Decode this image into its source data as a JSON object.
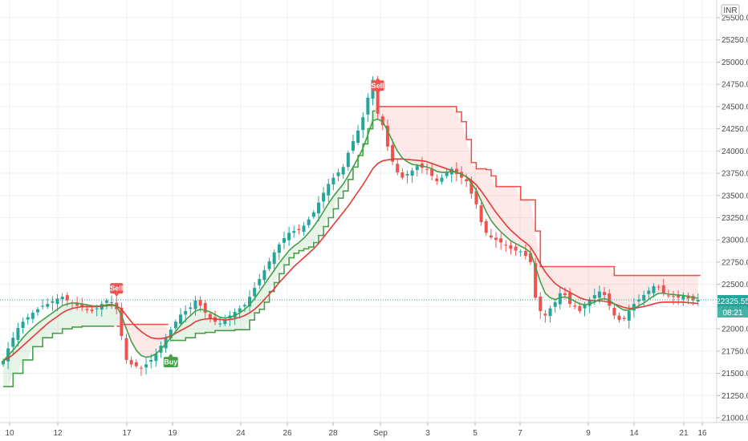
{
  "currency_label": "INR",
  "price_tag": "22325.55",
  "countdown_tag": "08:21",
  "colors": {
    "up": "#26a69a",
    "down": "#ef5350",
    "ema_fast": "#43a047",
    "ema_slow": "#e53935",
    "stop_red": "#ef5350",
    "stop_green": "#43a047",
    "fill_red": "rgba(239,83,80,0.13)",
    "fill_green": "rgba(67,160,71,0.13)",
    "grid": "#eef1f6",
    "price_line": "#26a69a"
  },
  "signals": [
    {
      "type": "sell",
      "label": "Sell",
      "date_index": 23
    },
    {
      "type": "buy",
      "label": "Buy",
      "date_index": 34
    },
    {
      "type": "sell",
      "label": "Sell",
      "date_index": 76
    }
  ],
  "chart_data": {
    "type": "candlestick",
    "ylim": [
      21000,
      25500
    ],
    "y_ticks": [
      "21000.00",
      "21250.00",
      "21500.00",
      "21750.00",
      "22000.00",
      "22250.00",
      "22500.00",
      "22750.00",
      "23000.00",
      "23250.00",
      "23500.00",
      "23750.00",
      "24000.00",
      "24250.00",
      "24500.00",
      "24750.00",
      "25000.00",
      "25250.00",
      "25500.00"
    ],
    "x_ticks": [
      "10",
      "12",
      "17",
      "19",
      "24",
      "26",
      "28",
      "Sep",
      "3",
      "5",
      "7",
      "9",
      "14",
      "16",
      "21"
    ],
    "close": [
      21640,
      21780,
      21900,
      22010,
      22080,
      22130,
      22180,
      22220,
      22260,
      22280,
      22310,
      22340,
      22360,
      22320,
      22290,
      22260,
      22240,
      22210,
      22200,
      22230,
      22280,
      22320,
      22300,
      22220,
      21920,
      21650,
      21600,
      21580,
      21560,
      21600,
      21650,
      21720,
      21810,
      21900,
      21990,
      22080,
      22160,
      22200,
      22240,
      22320,
      22260,
      22180,
      22120,
      22080,
      22060,
      22100,
      22150,
      22190,
      22230,
      22270,
      22360,
      22460,
      22560,
      22660,
      22760,
      22860,
      22950,
      23020,
      23080,
      23100,
      23110,
      23160,
      23230,
      23310,
      23420,
      23530,
      23630,
      23700,
      23760,
      23820,
      23980,
      24110,
      24230,
      24380,
      24600,
      24800,
      24420,
      24290,
      24050,
      23880,
      23760,
      23700,
      23740,
      23780,
      23830,
      23810,
      23790,
      23720,
      23660,
      23700,
      23760,
      23800,
      23740,
      23700,
      23660,
      23520,
      23400,
      23200,
      23080,
      23030,
      23000,
      22970,
      22940,
      22900,
      22880,
      22870,
      22820,
      22750,
      22350,
      22200,
      22150,
      22230,
      22300,
      22400,
      22380,
      22280,
      22250,
      22200,
      22270,
      22330,
      22380,
      22420,
      22380,
      22260,
      22150,
      22100,
      22110,
      22200,
      22280,
      22330,
      22380,
      22430,
      22480,
      22470,
      22400,
      22370,
      22360,
      22350,
      22370,
      22340,
      22320,
      22325.55
    ],
    "ema_fast": [
      21640,
      21700,
      21760,
      21830,
      21900,
      21960,
      22010,
      22060,
      22100,
      22140,
      22180,
      22220,
      22260,
      22280,
      22290,
      22290,
      22280,
      22270,
      22260,
      22255,
      22260,
      22270,
      22275,
      22260,
      22150,
      22000,
      21860,
      21760,
      21700,
      21680,
      21690,
      21720,
      21770,
      21830,
      21900,
      21970,
      22040,
      22100,
      22150,
      22200,
      22220,
      22210,
      22190,
      22160,
      22130,
      22120,
      22130,
      22150,
      22180,
      22220,
      22270,
      22340,
      22420,
      22500,
      22580,
      22660,
      22740,
      22810,
      22880,
      22930,
      22970,
      23020,
      23080,
      23150,
      23230,
      23320,
      23410,
      23490,
      23560,
      23630,
      23720,
      23820,
      23920,
      24030,
      24180,
      24340,
      24360,
      24330,
      24230,
      24110,
      24000,
      23920,
      23880,
      23850,
      23840,
      23830,
      23820,
      23800,
      23770,
      23760,
      23760,
      23770,
      23760,
      23740,
      23710,
      23640,
      23560,
      23440,
      23320,
      23220,
      23150,
      23090,
      23040,
      22990,
      22960,
      22930,
      22900,
      22860,
      22700,
      22530,
      22400,
      22350,
      22330,
      22350,
      22360,
      22340,
      22310,
      22280,
      22270,
      22280,
      22300,
      22330,
      22340,
      22320,
      22280,
      22240,
      22210,
      22210,
      22230,
      22260,
      22290,
      22330,
      22370,
      22400,
      22400,
      22390,
      22385,
      22380,
      22375,
      22365,
      22350,
      22345
    ],
    "ema_slow": [
      21640,
      21670,
      21710,
      21760,
      21810,
      21860,
      21910,
      21960,
      22010,
      22060,
      22100,
      22140,
      22180,
      22210,
      22230,
      22240,
      22250,
      22250,
      22250,
      22250,
      22255,
      22260,
      22265,
      22260,
      22220,
      22150,
      22080,
      22020,
      21970,
      21930,
      21900,
      21890,
      21890,
      21900,
      21920,
      21950,
      21980,
      22010,
      22040,
      22080,
      22100,
      22110,
      22115,
      22110,
      22105,
      22100,
      22105,
      22115,
      22130,
      22150,
      22180,
      22220,
      22270,
      22330,
      22390,
      22450,
      22520,
      22580,
      22640,
      22700,
      22750,
      22800,
      22850,
      22900,
      22960,
      23030,
      23100,
      23170,
      23240,
      23310,
      23380,
      23460,
      23540,
      23620,
      23710,
      23800,
      23860,
      23890,
      23900,
      23910,
      23910,
      23910,
      23905,
      23900,
      23895,
      23890,
      23880,
      23860,
      23840,
      23820,
      23800,
      23780,
      23760,
      23740,
      23710,
      23670,
      23620,
      23550,
      23470,
      23390,
      23310,
      23240,
      23170,
      23110,
      23060,
      23010,
      22970,
      22920,
      22830,
      22730,
      22640,
      22570,
      22510,
      22470,
      22440,
      22410,
      22380,
      22350,
      22330,
      22320,
      22315,
      22315,
      22310,
      22300,
      22280,
      22260,
      22240,
      22230,
      22230,
      22240,
      22250,
      22265,
      22280,
      22295,
      22300,
      22300,
      22300,
      22300,
      22300,
      22295,
      22290,
      22285
    ],
    "stop": [
      21350,
      21350,
      21500,
      21500,
      21650,
      21650,
      21800,
      21800,
      21900,
      21900,
      21950,
      21950,
      22000,
      22000,
      22020,
      22020,
      22030,
      22030,
      22030,
      22030,
      22030,
      22030,
      22030,
      22030,
      22050,
      22050,
      22050,
      22050,
      22050,
      22050,
      22050,
      22050,
      22050,
      22050,
      21870,
      21870,
      21870,
      21900,
      21900,
      21950,
      21950,
      21960,
      21960,
      21980,
      21980,
      21980,
      21980,
      21990,
      21990,
      21990,
      22100,
      22180,
      22220,
      22300,
      22420,
      22520,
      22620,
      22720,
      22800,
      22850,
      22880,
      22900,
      22920,
      22970,
      23050,
      23150,
      23250,
      23350,
      23470,
      23550,
      23680,
      23820,
      23950,
      24080,
      24250,
      24450,
      24500,
      24500,
      24500,
      24500,
      24500,
      24500,
      24500,
      24500,
      24500,
      24500,
      24500,
      24500,
      24500,
      24500,
      24500,
      24500,
      24440,
      24330,
      24130,
      23870,
      23800,
      23800,
      23790,
      23720,
      23600,
      23600,
      23600,
      23600,
      23600,
      23450,
      23450,
      23450,
      23100,
      22700,
      22700,
      22700,
      22700,
      22700,
      22700,
      22700,
      22700,
      22700,
      22700,
      22700,
      22700,
      22700,
      22700,
      22700,
      22600,
      22600,
      22600,
      22600,
      22600,
      22600,
      22600,
      22600,
      22600,
      22600,
      22600,
      22600,
      22600,
      22600,
      22600,
      22600,
      22600,
      22600
    ],
    "stop_side": [
      1,
      1,
      1,
      1,
      1,
      1,
      1,
      1,
      1,
      1,
      1,
      1,
      1,
      1,
      1,
      1,
      1,
      1,
      1,
      1,
      1,
      1,
      1,
      -1,
      -1,
      -1,
      -1,
      -1,
      -1,
      -1,
      -1,
      -1,
      -1,
      -1,
      1,
      1,
      1,
      1,
      1,
      1,
      1,
      1,
      1,
      1,
      1,
      1,
      1,
      1,
      1,
      1,
      1,
      1,
      1,
      1,
      1,
      1,
      1,
      1,
      1,
      1,
      1,
      1,
      1,
      1,
      1,
      1,
      1,
      1,
      1,
      1,
      1,
      1,
      1,
      1,
      1,
      1,
      -1,
      -1,
      -1,
      -1,
      -1,
      -1,
      -1,
      -1,
      -1,
      -1,
      -1,
      -1,
      -1,
      -1,
      -1,
      -1,
      -1,
      -1,
      -1,
      -1,
      -1,
      -1,
      -1,
      -1,
      -1,
      -1,
      -1,
      -1,
      -1,
      -1,
      -1,
      -1,
      -1,
      -1,
      -1,
      -1,
      -1,
      -1,
      -1,
      -1,
      -1,
      -1,
      -1,
      -1,
      -1,
      -1,
      -1,
      -1,
      -1,
      -1,
      -1,
      -1,
      -1,
      -1,
      -1,
      -1,
      -1,
      -1,
      -1,
      -1,
      -1,
      -1,
      -1,
      -1,
      -1,
      -1,
      -1,
      -1
    ]
  }
}
